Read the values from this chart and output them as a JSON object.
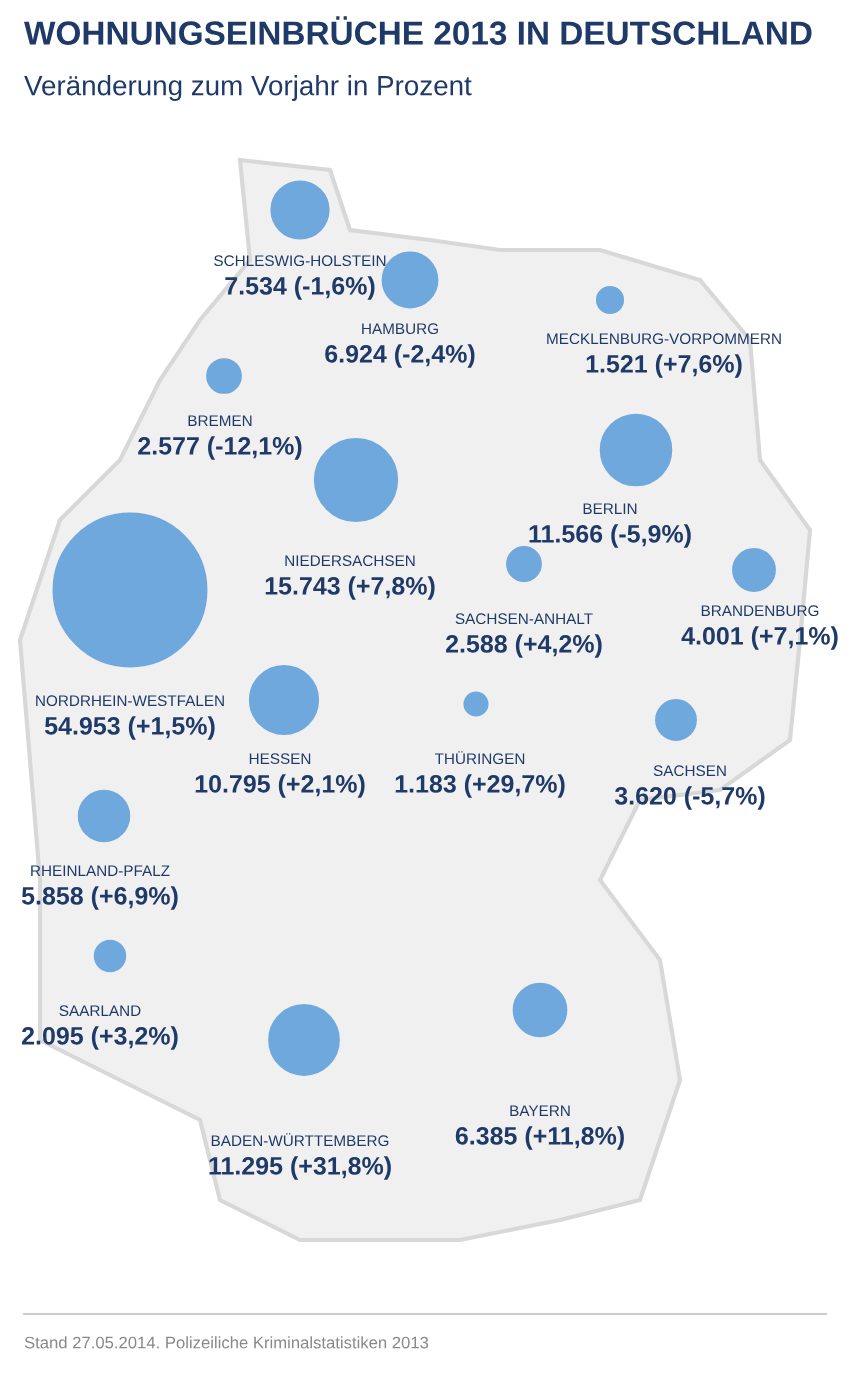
{
  "chart_data": {
    "type": "other",
    "title": "WOHNUNGSEINBRÜCHE 2013 IN DEUTSCHLAND",
    "subtitle": "Veränderung zum Vorjahr in Prozent",
    "categories": [
      "SCHLESWIG-HOLSTEIN",
      "MECKLENBURG-VORPOMMERN",
      "HAMBURG",
      "BREMEN",
      "BERLIN",
      "NIEDERSACHSEN",
      "SACHSEN-ANHALT",
      "BRANDENBURG",
      "NORDRHEIN-WESTFALEN",
      "HESSEN",
      "THÜRINGEN",
      "SACHSEN",
      "RHEINLAND-PFALZ",
      "SAARLAND",
      "BAYERN",
      "BADEN-WÜRTTEMBERG"
    ],
    "values": [
      7534,
      1521,
      6924,
      2577,
      11566,
      15743,
      2588,
      4001,
      54953,
      10795,
      1183,
      3620,
      5858,
      2095,
      6385,
      11295
    ],
    "value_labels": [
      "7.534 (-1,6%)",
      "1.521 (+7,6%)",
      "6.924 (-2,4%)",
      "2.577 (-12,1%)",
      "11.566 (-5,9%)",
      "15.743 (+7,8%)",
      "2.588 (+4,2%)",
      "4.001 (+7,1%)",
      "54.953 (+1,5%)",
      "10.795 (+2,1%)",
      "1.183 (+29,7%)",
      "3.620 (-5,7%)",
      "5.858 (+6,9%)",
      "2.095 (+3,2%)",
      "6.385 (+11,8%)",
      "11.295 (+31,8%)"
    ],
    "color": "#6fa8dc",
    "annotations": [
      "Stand 27.05.2014. Polizeiliche Kriminalstatistiken 2013"
    ]
  }
}
